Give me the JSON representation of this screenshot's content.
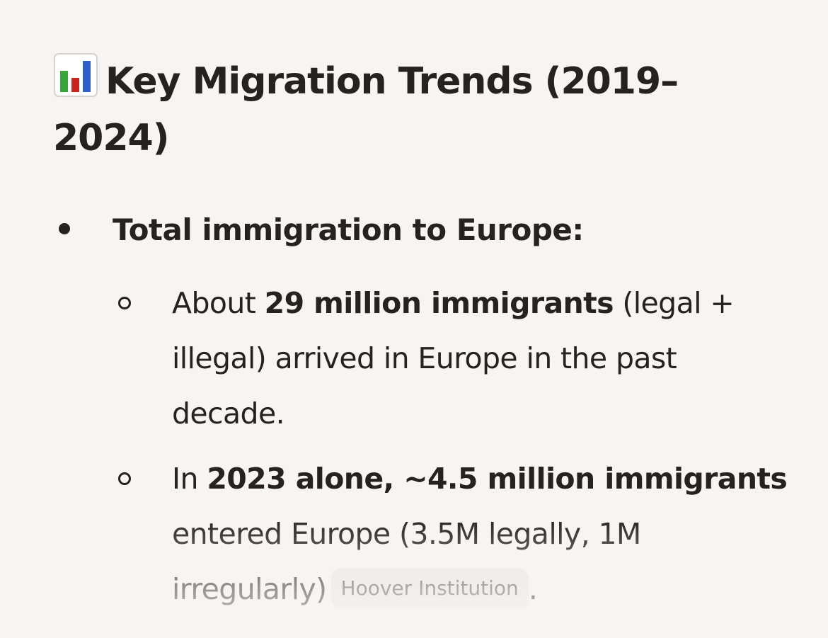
{
  "heading": {
    "icon": "bar-chart-icon",
    "text": "Key Migration Trends (2019–2024)"
  },
  "list": {
    "item1": {
      "label": "Total immigration to Europe:",
      "sub1": {
        "pre": "About ",
        "bold": "29 million immigrants",
        "post": " (legal + illegal) arrived in Europe in the past decade."
      },
      "sub2": {
        "pre": "In ",
        "bold": "2023 alone, ~4.5 million immigrants",
        "post": " entered Europe (3.5M legally, 1M irregularly)",
        "citation": "Hoover Institution",
        "end": "."
      }
    }
  },
  "colors": {
    "background": "#f7f4f1",
    "text": "#25221f",
    "citation_bg": "#ebe7e3"
  }
}
